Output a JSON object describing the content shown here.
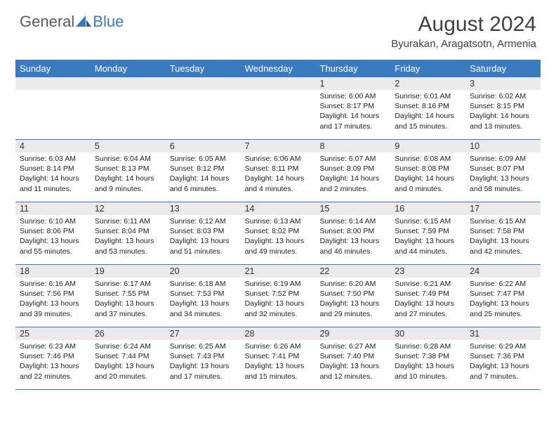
{
  "brand": {
    "part1": "General",
    "part2": "Blue"
  },
  "title": "August 2024",
  "subtitle": "Byurakan, Aragatsotn, Armenia",
  "colors": {
    "header_bg": "#3a7bbf",
    "header_text": "#ffffff",
    "band_bg": "#eaeaea",
    "page_bg": "#ffffff",
    "body_text": "#222222",
    "title_text": "#404040",
    "logo_gray": "#5a5a5a",
    "logo_blue": "#3a7bbf"
  },
  "typography": {
    "title_fontsize": 30,
    "subtitle_fontsize": 15,
    "dayhead_fontsize": 13,
    "daynum_fontsize": 12.5,
    "detail_fontsize": 10.5
  },
  "layout": {
    "columns": 7,
    "rows": 5
  },
  "day_names": [
    "Sunday",
    "Monday",
    "Tuesday",
    "Wednesday",
    "Thursday",
    "Friday",
    "Saturday"
  ],
  "weeks": [
    [
      {
        "day": "",
        "sunrise": "",
        "sunset": "",
        "daylight": ""
      },
      {
        "day": "",
        "sunrise": "",
        "sunset": "",
        "daylight": ""
      },
      {
        "day": "",
        "sunrise": "",
        "sunset": "",
        "daylight": ""
      },
      {
        "day": "",
        "sunrise": "",
        "sunset": "",
        "daylight": ""
      },
      {
        "day": "1",
        "sunrise": "Sunrise: 6:00 AM",
        "sunset": "Sunset: 8:17 PM",
        "daylight": "Daylight: 14 hours and 17 minutes."
      },
      {
        "day": "2",
        "sunrise": "Sunrise: 6:01 AM",
        "sunset": "Sunset: 8:16 PM",
        "daylight": "Daylight: 14 hours and 15 minutes."
      },
      {
        "day": "3",
        "sunrise": "Sunrise: 6:02 AM",
        "sunset": "Sunset: 8:15 PM",
        "daylight": "Daylight: 14 hours and 13 minutes."
      }
    ],
    [
      {
        "day": "4",
        "sunrise": "Sunrise: 6:03 AM",
        "sunset": "Sunset: 8:14 PM",
        "daylight": "Daylight: 14 hours and 11 minutes."
      },
      {
        "day": "5",
        "sunrise": "Sunrise: 6:04 AM",
        "sunset": "Sunset: 8:13 PM",
        "daylight": "Daylight: 14 hours and 9 minutes."
      },
      {
        "day": "6",
        "sunrise": "Sunrise: 6:05 AM",
        "sunset": "Sunset: 8:12 PM",
        "daylight": "Daylight: 14 hours and 6 minutes."
      },
      {
        "day": "7",
        "sunrise": "Sunrise: 6:06 AM",
        "sunset": "Sunset: 8:11 PM",
        "daylight": "Daylight: 14 hours and 4 minutes."
      },
      {
        "day": "8",
        "sunrise": "Sunrise: 6:07 AM",
        "sunset": "Sunset: 8:09 PM",
        "daylight": "Daylight: 14 hours and 2 minutes."
      },
      {
        "day": "9",
        "sunrise": "Sunrise: 6:08 AM",
        "sunset": "Sunset: 8:08 PM",
        "daylight": "Daylight: 14 hours and 0 minutes."
      },
      {
        "day": "10",
        "sunrise": "Sunrise: 6:09 AM",
        "sunset": "Sunset: 8:07 PM",
        "daylight": "Daylight: 13 hours and 58 minutes."
      }
    ],
    [
      {
        "day": "11",
        "sunrise": "Sunrise: 6:10 AM",
        "sunset": "Sunset: 8:06 PM",
        "daylight": "Daylight: 13 hours and 55 minutes."
      },
      {
        "day": "12",
        "sunrise": "Sunrise: 6:11 AM",
        "sunset": "Sunset: 8:04 PM",
        "daylight": "Daylight: 13 hours and 53 minutes."
      },
      {
        "day": "13",
        "sunrise": "Sunrise: 6:12 AM",
        "sunset": "Sunset: 8:03 PM",
        "daylight": "Daylight: 13 hours and 51 minutes."
      },
      {
        "day": "14",
        "sunrise": "Sunrise: 6:13 AM",
        "sunset": "Sunset: 8:02 PM",
        "daylight": "Daylight: 13 hours and 49 minutes."
      },
      {
        "day": "15",
        "sunrise": "Sunrise: 6:14 AM",
        "sunset": "Sunset: 8:00 PM",
        "daylight": "Daylight: 13 hours and 46 minutes."
      },
      {
        "day": "16",
        "sunrise": "Sunrise: 6:15 AM",
        "sunset": "Sunset: 7:59 PM",
        "daylight": "Daylight: 13 hours and 44 minutes."
      },
      {
        "day": "17",
        "sunrise": "Sunrise: 6:15 AM",
        "sunset": "Sunset: 7:58 PM",
        "daylight": "Daylight: 13 hours and 42 minutes."
      }
    ],
    [
      {
        "day": "18",
        "sunrise": "Sunrise: 6:16 AM",
        "sunset": "Sunset: 7:56 PM",
        "daylight": "Daylight: 13 hours and 39 minutes."
      },
      {
        "day": "19",
        "sunrise": "Sunrise: 6:17 AM",
        "sunset": "Sunset: 7:55 PM",
        "daylight": "Daylight: 13 hours and 37 minutes."
      },
      {
        "day": "20",
        "sunrise": "Sunrise: 6:18 AM",
        "sunset": "Sunset: 7:53 PM",
        "daylight": "Daylight: 13 hours and 34 minutes."
      },
      {
        "day": "21",
        "sunrise": "Sunrise: 6:19 AM",
        "sunset": "Sunset: 7:52 PM",
        "daylight": "Daylight: 13 hours and 32 minutes."
      },
      {
        "day": "22",
        "sunrise": "Sunrise: 6:20 AM",
        "sunset": "Sunset: 7:50 PM",
        "daylight": "Daylight: 13 hours and 29 minutes."
      },
      {
        "day": "23",
        "sunrise": "Sunrise: 6:21 AM",
        "sunset": "Sunset: 7:49 PM",
        "daylight": "Daylight: 13 hours and 27 minutes."
      },
      {
        "day": "24",
        "sunrise": "Sunrise: 6:22 AM",
        "sunset": "Sunset: 7:47 PM",
        "daylight": "Daylight: 13 hours and 25 minutes."
      }
    ],
    [
      {
        "day": "25",
        "sunrise": "Sunrise: 6:23 AM",
        "sunset": "Sunset: 7:46 PM",
        "daylight": "Daylight: 13 hours and 22 minutes."
      },
      {
        "day": "26",
        "sunrise": "Sunrise: 6:24 AM",
        "sunset": "Sunset: 7:44 PM",
        "daylight": "Daylight: 13 hours and 20 minutes."
      },
      {
        "day": "27",
        "sunrise": "Sunrise: 6:25 AM",
        "sunset": "Sunset: 7:43 PM",
        "daylight": "Daylight: 13 hours and 17 minutes."
      },
      {
        "day": "28",
        "sunrise": "Sunrise: 6:26 AM",
        "sunset": "Sunset: 7:41 PM",
        "daylight": "Daylight: 13 hours and 15 minutes."
      },
      {
        "day": "29",
        "sunrise": "Sunrise: 6:27 AM",
        "sunset": "Sunset: 7:40 PM",
        "daylight": "Daylight: 13 hours and 12 minutes."
      },
      {
        "day": "30",
        "sunrise": "Sunrise: 6:28 AM",
        "sunset": "Sunset: 7:38 PM",
        "daylight": "Daylight: 13 hours and 10 minutes."
      },
      {
        "day": "31",
        "sunrise": "Sunrise: 6:29 AM",
        "sunset": "Sunset: 7:36 PM",
        "daylight": "Daylight: 13 hours and 7 minutes."
      }
    ]
  ]
}
